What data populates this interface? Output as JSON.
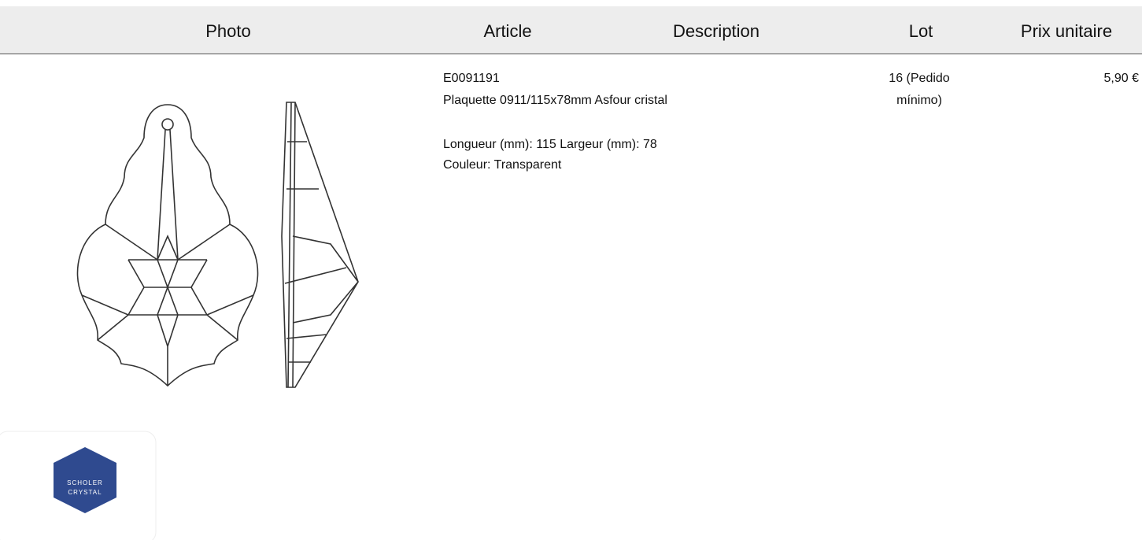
{
  "table": {
    "headers": [
      "Photo",
      "Article",
      "Description",
      "Lot",
      "Prix unitaire"
    ],
    "rows": [
      {
        "article": "E0091191",
        "description": [
          "Plaquette 0911/115x78mm Asfour cristal",
          "Longueur (mm): 115 Largeur (mm): 78",
          "Couleur: Transparent"
        ],
        "lot": [
          "16 (Pedido",
          "mínimo)"
        ],
        "price": "5,90 €"
      }
    ]
  },
  "logo": {
    "lines": [
      "SCHOLER",
      "CRYSTAL"
    ]
  }
}
